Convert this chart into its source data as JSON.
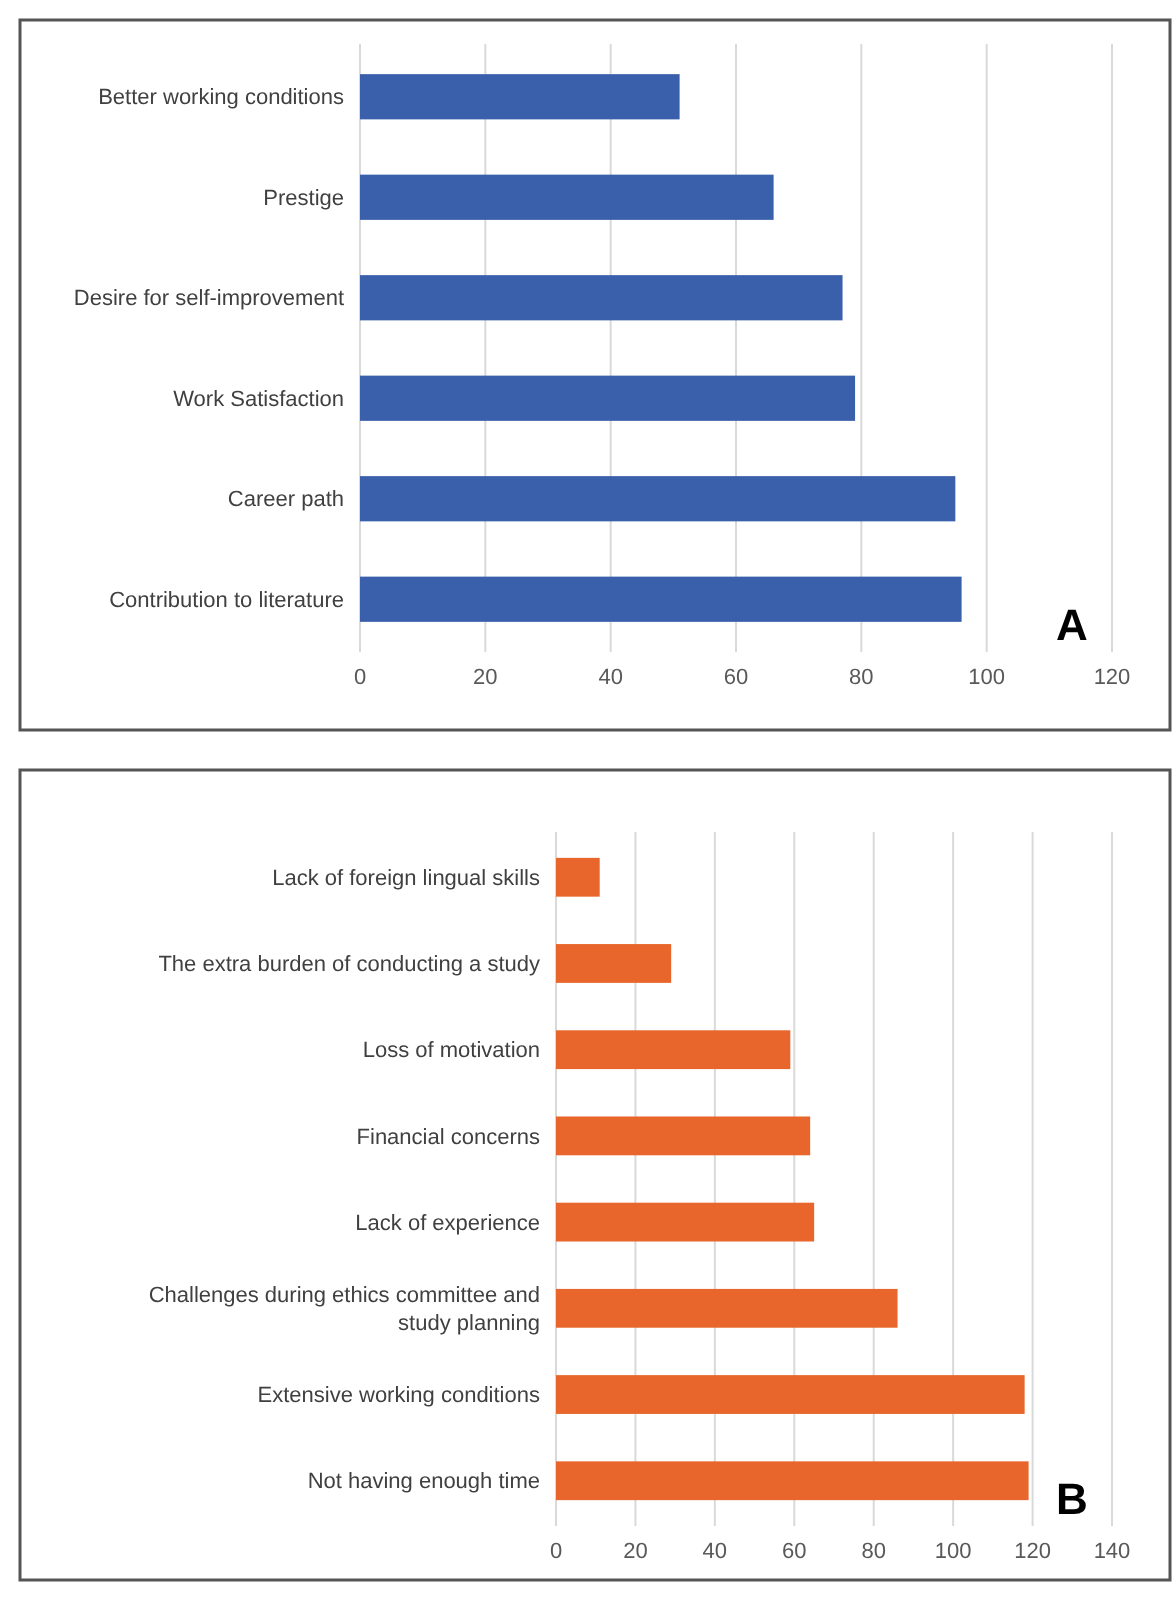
{
  "chart_data": [
    {
      "type": "bar",
      "orientation": "horizontal",
      "categories": [
        "Better working conditions",
        "Prestige",
        "Desire for self-improvement",
        "Work Satisfaction",
        "Career path",
        "Contribution to literature"
      ],
      "values": [
        51,
        66,
        77,
        79,
        95,
        96
      ],
      "color": "#3a5fab",
      "xlim": [
        0,
        120
      ],
      "xticks": [
        0,
        20,
        40,
        60,
        80,
        100,
        120
      ],
      "grid": "x",
      "annotations": [
        "A"
      ]
    },
    {
      "type": "bar",
      "orientation": "horizontal",
      "categories": [
        "Lack of foreign lingual skills",
        "The extra burden of conducting a study",
        "Loss of motivation",
        "Financial concerns",
        "Lack of experience",
        "Challenges during ethics committee and study planning",
        "Extensive working conditions",
        "Not having enough time"
      ],
      "values": [
        11,
        29,
        59,
        64,
        65,
        86,
        118,
        119
      ],
      "color": "#e8652b",
      "xlim": [
        0,
        140
      ],
      "xticks": [
        0,
        20,
        40,
        60,
        80,
        100,
        120,
        140
      ],
      "grid": "x",
      "annotations": [
        "B"
      ]
    }
  ]
}
